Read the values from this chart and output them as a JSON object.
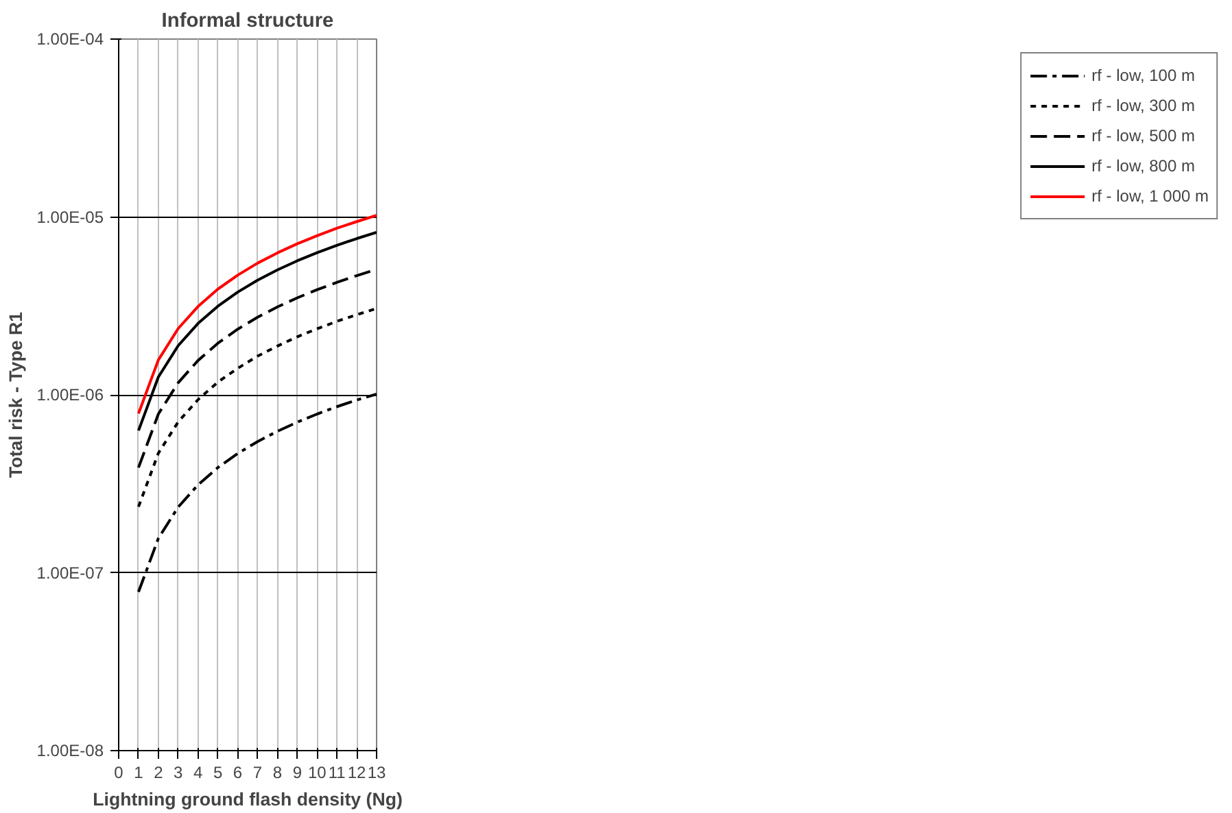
{
  "chart_data": {
    "type": "line",
    "title": "Informal structure",
    "xlabel": "Lightning ground flash density (Ng)",
    "ylabel": "Total risk - Type R1",
    "x": [
      1,
      2,
      3,
      4,
      5,
      6,
      7,
      8,
      9,
      10,
      11,
      12,
      13
    ],
    "series": [
      {
        "name": "rf - low, 100 m",
        "color": "#000000",
        "line_style": "dashdot",
        "values": [
          7.8e-08,
          1.56e-07,
          2.34e-07,
          3.12e-07,
          3.9e-07,
          4.68e-07,
          5.46e-07,
          6.24e-07,
          7.02e-07,
          7.8e-07,
          8.58e-07,
          9.36e-07,
          1.01e-06
        ]
      },
      {
        "name": "rf - low, 300 m",
        "color": "#000000",
        "line_style": "dotted",
        "values": [
          2.35e-07,
          4.7e-07,
          7.05e-07,
          9.4e-07,
          1.18e-06,
          1.41e-06,
          1.65e-06,
          1.88e-06,
          2.12e-06,
          2.35e-06,
          2.59e-06,
          2.82e-06,
          3.06e-06
        ]
      },
      {
        "name": "rf - low, 500 m",
        "color": "#000000",
        "line_style": "dashed",
        "values": [
          3.9e-07,
          7.8e-07,
          1.17e-06,
          1.56e-06,
          1.95e-06,
          2.34e-06,
          2.73e-06,
          3.12e-06,
          3.51e-06,
          3.9e-06,
          4.29e-06,
          4.68e-06,
          5.07e-06
        ]
      },
      {
        "name": "rf - low, 800 m",
        "color": "#000000",
        "line_style": "solid",
        "values": [
          6.3e-07,
          1.26e-06,
          1.89e-06,
          2.52e-06,
          3.15e-06,
          3.78e-06,
          4.41e-06,
          5.04e-06,
          5.67e-06,
          6.3e-06,
          6.93e-06,
          7.56e-06,
          8.19e-06
        ]
      },
      {
        "name": "rf - low, 1 000 m",
        "color": "#ff0000",
        "line_style": "solid",
        "values": [
          7.85e-07,
          1.57e-06,
          2.36e-06,
          3.14e-06,
          3.93e-06,
          4.71e-06,
          5.5e-06,
          6.28e-06,
          7.07e-06,
          7.85e-06,
          8.64e-06,
          9.42e-06,
          1.02e-05
        ]
      }
    ],
    "xlim": [
      0,
      13
    ],
    "xticks": [
      0,
      1,
      2,
      3,
      4,
      5,
      6,
      7,
      8,
      9,
      10,
      11,
      12,
      13
    ],
    "ylim": [
      1e-08,
      0.0001
    ],
    "log": "y",
    "yticks": [
      {
        "value": 1e-08,
        "label": "1.00E-08"
      },
      {
        "value": 1e-07,
        "label": "1.00E-07"
      },
      {
        "value": 1e-06,
        "label": "1.00E-06"
      },
      {
        "value": 1e-05,
        "label": "1.00E-05"
      },
      {
        "value": 0.0001,
        "label": "1.00E-04"
      }
    ],
    "grid": true,
    "legend": "right",
    "marker": "none"
  }
}
